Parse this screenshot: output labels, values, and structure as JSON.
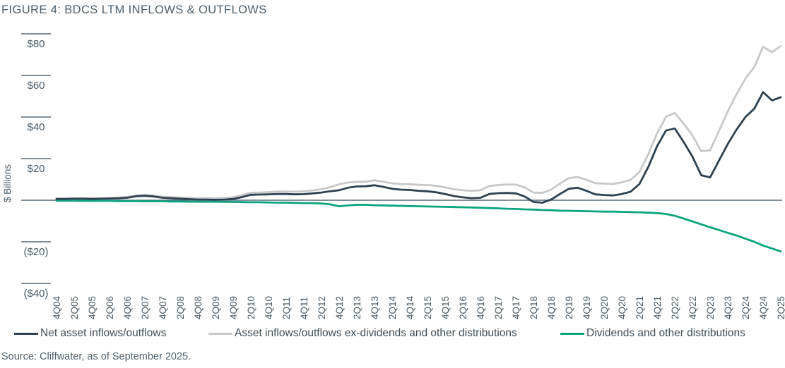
{
  "figure": {
    "title": "FIGURE 4: BDCS LTM INFLOWS & OUTFLOWS",
    "source": "Source: Cliffwater, as of September 2025."
  },
  "colors": {
    "net": "#2d4151",
    "ex_dividends": "#c7c8ca",
    "dividends": "#0ba47e",
    "axis": "#5a6a76",
    "tick_text": "#4b5b67"
  },
  "chart_data": {
    "type": "line",
    "title": "FIGURE 4: BDCS LTM INFLOWS & OUTFLOWS",
    "xlabel": "",
    "ylabel": "$ Billions",
    "ylim": [
      -40,
      85
    ],
    "grid": false,
    "legend_position": "bottom",
    "x_tick_every": 2,
    "y_ticks": [
      {
        "value": 80,
        "label": "$80"
      },
      {
        "value": 60,
        "label": "$60"
      },
      {
        "value": 40,
        "label": "$40"
      },
      {
        "value": 20,
        "label": "$20"
      },
      {
        "value": -20,
        "label": "($20)"
      },
      {
        "value": -40,
        "label": "($40)"
      }
    ],
    "categories": [
      "4Q04",
      "1Q05",
      "2Q05",
      "3Q05",
      "4Q05",
      "1Q06",
      "2Q06",
      "3Q06",
      "4Q06",
      "1Q07",
      "2Q07",
      "3Q07",
      "4Q07",
      "1Q08",
      "2Q08",
      "3Q08",
      "4Q08",
      "1Q09",
      "2Q09",
      "3Q09",
      "4Q09",
      "1Q10",
      "2Q10",
      "3Q10",
      "4Q10",
      "1Q11",
      "2Q11",
      "3Q11",
      "4Q11",
      "1Q12",
      "2Q12",
      "3Q12",
      "4Q12",
      "1Q13",
      "2Q13",
      "3Q13",
      "4Q13",
      "1Q14",
      "2Q14",
      "3Q14",
      "4Q14",
      "1Q15",
      "2Q15",
      "3Q15",
      "4Q15",
      "1Q16",
      "2Q16",
      "3Q16",
      "4Q16",
      "1Q17",
      "2Q17",
      "3Q17",
      "4Q17",
      "1Q18",
      "2Q18",
      "3Q18",
      "4Q18",
      "1Q19",
      "2Q19",
      "3Q19",
      "4Q19",
      "1Q20",
      "2Q20",
      "3Q20",
      "4Q20",
      "1Q21",
      "2Q21",
      "3Q21",
      "4Q21",
      "1Q22",
      "2Q22",
      "3Q22",
      "4Q22",
      "1Q23",
      "2Q23",
      "3Q23",
      "4Q23",
      "1Q24",
      "2Q24",
      "3Q24",
      "4Q24",
      "1Q25",
      "2Q25"
    ],
    "series": [
      {
        "name": "Net asset inflows/outflows",
        "color": "#2d4151",
        "values": [
          0.6,
          0.6,
          0.7,
          0.7,
          0.6,
          0.7,
          0.8,
          0.9,
          1.2,
          1.9,
          2.1,
          1.8,
          1.2,
          0.9,
          0.7,
          0.5,
          0.3,
          0.3,
          0.2,
          0.3,
          0.6,
          1.5,
          2.6,
          2.7,
          2.8,
          3.0,
          3.0,
          2.8,
          2.9,
          3.3,
          3.7,
          4.3,
          4.8,
          6.0,
          6.6,
          6.7,
          7.2,
          6.4,
          5.5,
          5.1,
          4.9,
          4.5,
          4.3,
          3.8,
          3.0,
          2.0,
          1.4,
          1.0,
          1.2,
          3.0,
          3.4,
          3.5,
          3.3,
          1.8,
          -0.8,
          -1.2,
          0.3,
          3.0,
          5.5,
          6.0,
          4.5,
          2.8,
          2.5,
          2.3,
          3.0,
          4.1,
          7.8,
          16.0,
          26.0,
          33.5,
          34.5,
          28.0,
          21.0,
          12.0,
          11.0,
          19.0,
          27.0,
          34.0,
          40.0,
          44.0,
          52.0,
          48.0,
          49.5
        ]
      },
      {
        "name": "Asset inflows/outflows ex-dividends and other distributions",
        "color": "#c7c8ca",
        "values": [
          0.8,
          0.8,
          0.9,
          1.0,
          0.9,
          1.0,
          1.1,
          1.3,
          1.6,
          2.3,
          2.6,
          2.3,
          1.7,
          1.5,
          1.3,
          1.2,
          1.0,
          1.0,
          0.9,
          1.1,
          1.4,
          2.4,
          3.6,
          3.7,
          3.9,
          4.2,
          4.2,
          4.1,
          4.3,
          4.7,
          5.3,
          6.3,
          7.7,
          8.5,
          8.8,
          8.9,
          9.6,
          8.9,
          8.1,
          7.8,
          7.7,
          7.4,
          7.3,
          6.9,
          6.2,
          5.3,
          4.8,
          4.5,
          4.8,
          6.8,
          7.3,
          7.6,
          7.5,
          6.2,
          3.7,
          3.5,
          5.1,
          8.0,
          10.6,
          11.2,
          9.8,
          8.2,
          8.0,
          7.8,
          8.6,
          9.8,
          13.6,
          22.0,
          32.2,
          40.1,
          42.0,
          36.8,
          31.2,
          23.6,
          24.0,
          33.3,
          42.7,
          51.0,
          58.5,
          64.0,
          73.8,
          71.2,
          74.1
        ]
      },
      {
        "name": "Dividends and other distributions",
        "color": "#0ba47e",
        "values": [
          -0.2,
          -0.2,
          -0.2,
          -0.3,
          -0.3,
          -0.3,
          -0.3,
          -0.4,
          -0.4,
          -0.4,
          -0.5,
          -0.5,
          -0.5,
          -0.6,
          -0.6,
          -0.7,
          -0.7,
          -0.7,
          -0.7,
          -0.8,
          -0.8,
          -0.9,
          -1.0,
          -1.0,
          -1.1,
          -1.2,
          -1.2,
          -1.3,
          -1.4,
          -1.4,
          -1.6,
          -2.0,
          -2.9,
          -2.5,
          -2.2,
          -2.2,
          -2.4,
          -2.5,
          -2.6,
          -2.7,
          -2.8,
          -2.9,
          -3.0,
          -3.1,
          -3.2,
          -3.3,
          -3.4,
          -3.5,
          -3.6,
          -3.8,
          -3.9,
          -4.1,
          -4.2,
          -4.4,
          -4.5,
          -4.7,
          -4.8,
          -5.0,
          -5.1,
          -5.2,
          -5.3,
          -5.4,
          -5.5,
          -5.5,
          -5.6,
          -5.7,
          -5.8,
          -6.0,
          -6.2,
          -6.6,
          -7.5,
          -8.8,
          -10.2,
          -11.6,
          -13.0,
          -14.3,
          -15.7,
          -17.0,
          -18.5,
          -20.0,
          -21.8,
          -23.2,
          -24.6
        ]
      }
    ]
  }
}
